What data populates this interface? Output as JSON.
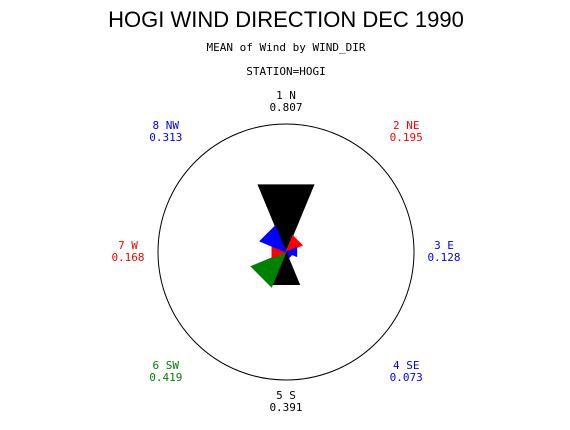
{
  "chart_data": {
    "type": "star",
    "title": "HOGI WIND DIRECTION DEC 1990",
    "subtitle": "MEAN of Wind by WIND_DIR",
    "group_label": "STATION=HOGI",
    "categories": [
      "1 N",
      "2 NE",
      "3 E",
      "4 SE",
      "5 S",
      "6 SW",
      "7 W",
      "8 NW"
    ],
    "values": [
      0.807,
      0.195,
      0.128,
      0.073,
      0.391,
      0.419,
      0.168,
      0.313
    ],
    "colors": [
      "#000000",
      "#ff0000",
      "#0000ff",
      "#0000ff",
      "#000000",
      "#008000",
      "#ff0000",
      "#0000ff"
    ]
  }
}
